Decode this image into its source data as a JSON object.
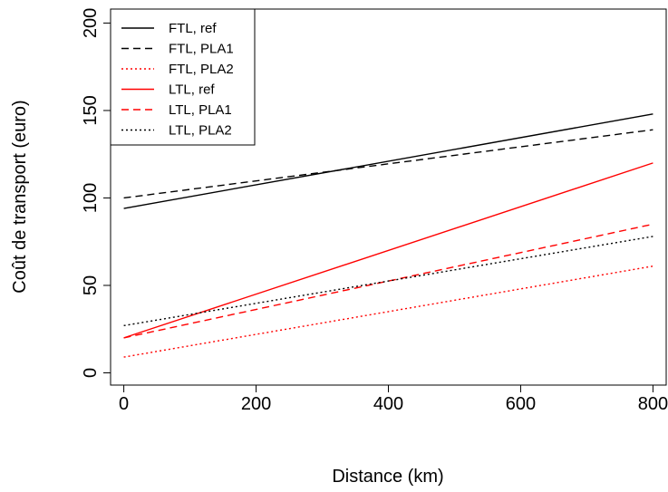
{
  "chart_data": {
    "type": "line",
    "xlabel": "Distance (km)",
    "ylabel": "Coût de transport (euro)",
    "xlim": [
      -20,
      820
    ],
    "ylim": [
      -7,
      208
    ],
    "xticks": [
      0,
      200,
      400,
      600,
      800
    ],
    "yticks": [
      0,
      50,
      100,
      150,
      200
    ],
    "x_tick_labels": [
      "0",
      "200",
      "400",
      "600",
      "800"
    ],
    "y_tick_labels": [
      "0",
      "50",
      "100",
      "150",
      "200"
    ],
    "grid": false,
    "legend_position": "top-left",
    "series": [
      {
        "name": "FTL, ref",
        "color": "#000000",
        "dash": "solid",
        "x": [
          0,
          800
        ],
        "y": [
          94,
          148
        ]
      },
      {
        "name": "FTL, PLA1",
        "color": "#000000",
        "dash": "dashed",
        "x": [
          0,
          800
        ],
        "y": [
          100,
          139
        ]
      },
      {
        "name": "FTL, PLA2",
        "color": "#ff0000",
        "dash": "dotted",
        "x": [
          0,
          800
        ],
        "y": [
          9,
          61
        ]
      },
      {
        "name": "LTL, ref",
        "color": "#ff0000",
        "dash": "solid",
        "x": [
          0,
          800
        ],
        "y": [
          20,
          120
        ]
      },
      {
        "name": "LTL, PLA1",
        "color": "#ff0000",
        "dash": "dashed",
        "x": [
          0,
          800
        ],
        "y": [
          20,
          85
        ]
      },
      {
        "name": "LTL, PLA2",
        "color": "#000000",
        "dash": "dotted",
        "x": [
          0,
          800
        ],
        "y": [
          27,
          78
        ]
      }
    ]
  }
}
